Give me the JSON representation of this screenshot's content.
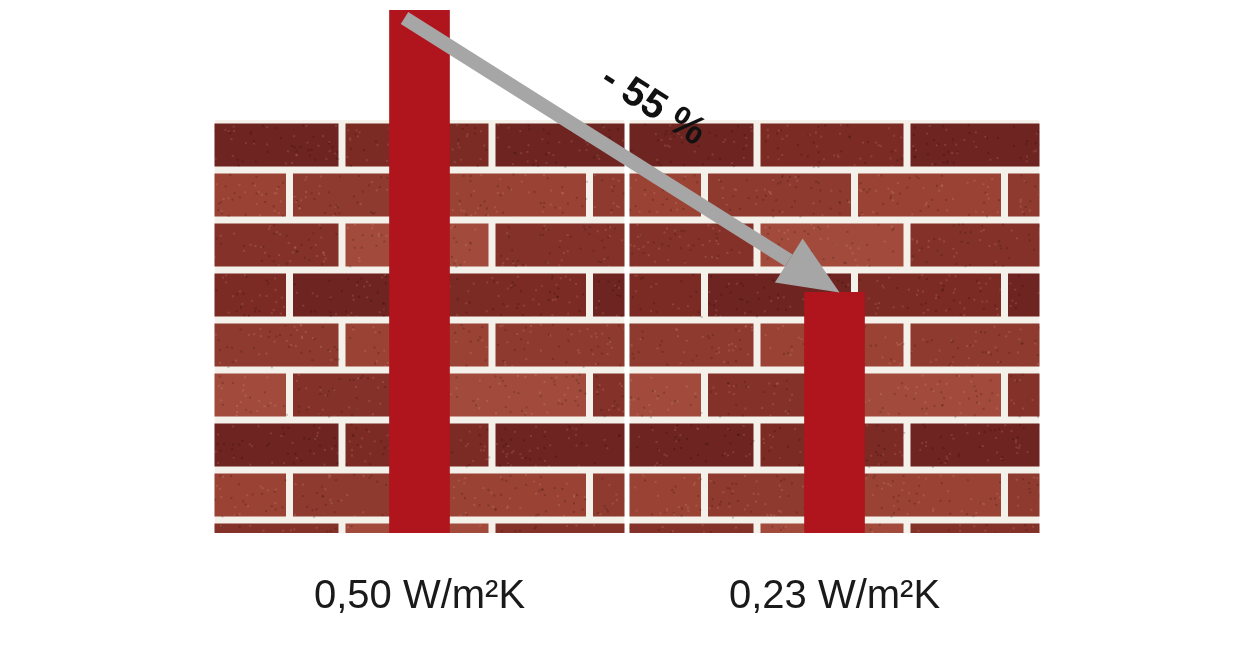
{
  "chart_data": {
    "type": "bar",
    "categories": [
      "0,50 W/m²K",
      "0,23 W/m²K"
    ],
    "values": [
      0.5,
      0.23
    ],
    "color": "#b0141c",
    "ylim": [
      0,
      0.5
    ],
    "annotation": "- 55 %",
    "tick_labels": "x",
    "grid": false
  }
}
